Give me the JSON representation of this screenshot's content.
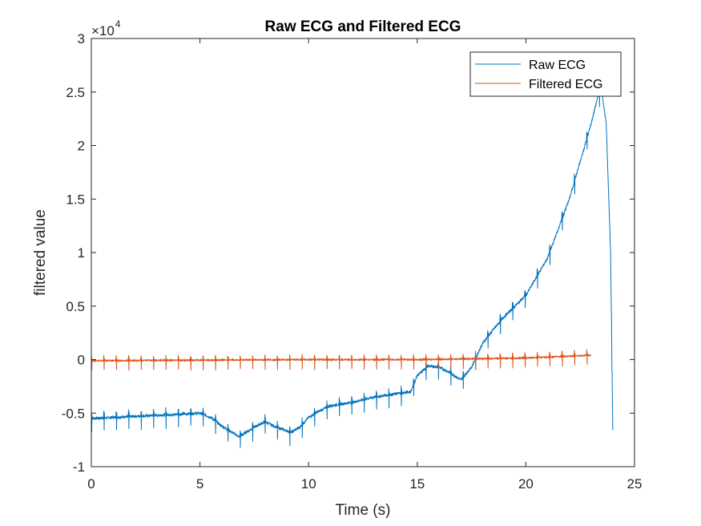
{
  "chart_data": {
    "type": "line",
    "title": "Raw ECG and Filtered ECG",
    "xlabel": "Time (s)",
    "ylabel": "filtered value",
    "xlim": [
      0,
      25
    ],
    "ylim": [
      -10000,
      30000
    ],
    "x_ticks": [
      0,
      5,
      10,
      15,
      20,
      25
    ],
    "y_ticks": [
      -10000,
      -5000,
      0,
      5000,
      10000,
      15000,
      20000,
      25000,
      30000
    ],
    "y_tick_labels": [
      "-1",
      "-0.5",
      "0",
      "0.5",
      "1",
      "1.5",
      "2",
      "2.5",
      "3"
    ],
    "x_tick_labels": [
      "0",
      "5",
      "10",
      "15",
      "20",
      "25"
    ],
    "y_exponent_base": "×10",
    "y_exponent_power": "4",
    "grid": false,
    "legend_position": "top-right",
    "series": [
      {
        "name": "Raw ECG",
        "color": "#0072BD",
        "beat_interval": 0.57,
        "spike_amplitude": 1200,
        "baseline": [
          [
            0,
            -5500
          ],
          [
            1,
            -5400
          ],
          [
            2,
            -5300
          ],
          [
            3,
            -5200
          ],
          [
            4,
            -5100
          ],
          [
            5,
            -5000
          ],
          [
            5.5,
            -5400
          ],
          [
            6,
            -6200
          ],
          [
            6.8,
            -7200
          ],
          [
            7.5,
            -6300
          ],
          [
            8,
            -5800
          ],
          [
            8.5,
            -6300
          ],
          [
            9.2,
            -6800
          ],
          [
            9.6,
            -6300
          ],
          [
            10,
            -5400
          ],
          [
            10.5,
            -4800
          ],
          [
            11,
            -4300
          ],
          [
            12,
            -4000
          ],
          [
            13,
            -3500
          ],
          [
            14,
            -3200
          ],
          [
            14.7,
            -3000
          ],
          [
            15,
            -1500
          ],
          [
            15.5,
            -600
          ],
          [
            16,
            -700
          ],
          [
            16.5,
            -1200
          ],
          [
            17,
            -1900
          ],
          [
            17.5,
            -700
          ],
          [
            18,
            1500
          ],
          [
            18.5,
            2800
          ],
          [
            19,
            4000
          ],
          [
            20,
            6000
          ],
          [
            21,
            9500
          ],
          [
            22,
            15000
          ],
          [
            23,
            22000
          ],
          [
            23.3,
            24500
          ],
          [
            23.5,
            25000
          ],
          [
            23.7,
            22000
          ],
          [
            23.9,
            10000
          ],
          [
            24,
            -6500
          ]
        ]
      },
      {
        "name": "Filtered ECG",
        "color": "#D95319",
        "beat_interval": 0.57,
        "spike_amplitude": 900,
        "baseline": [
          [
            0,
            -100
          ],
          [
            5,
            -50
          ],
          [
            10,
            0
          ],
          [
            15,
            0
          ],
          [
            20,
            150
          ],
          [
            23,
            400
          ]
        ]
      }
    ]
  }
}
